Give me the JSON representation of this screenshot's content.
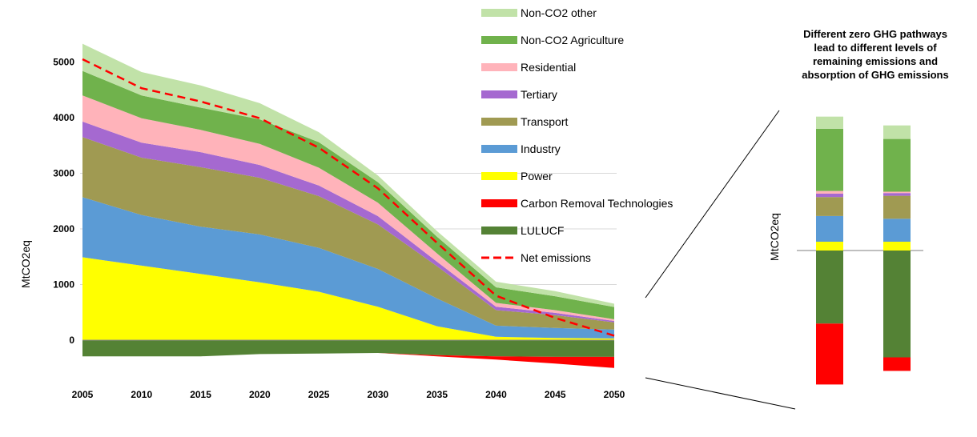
{
  "chart_data": [
    {
      "type": "area",
      "title": "",
      "xlabel": "",
      "ylabel": "MtCO2eq",
      "x": [
        2005,
        2010,
        2015,
        2020,
        2025,
        2030,
        2035,
        2040,
        2045,
        2050
      ],
      "xticks": [
        "2005",
        "2010",
        "2015",
        "2020",
        "2025",
        "2030",
        "2035",
        "2040",
        "2045",
        "2050"
      ],
      "yticks": [
        "0",
        "1000",
        "2000",
        "3000",
        "4000",
        "5000"
      ],
      "ylim": [
        -600,
        5600
      ],
      "grid": true,
      "legend_position": "top-right",
      "series": [
        {
          "name": "Power",
          "color": "#ffff00",
          "values": [
            1490,
            1340,
            1190,
            1040,
            870,
            600,
            250,
            60,
            40,
            30
          ]
        },
        {
          "name": "Industry",
          "color": "#5b9bd5",
          "values": [
            1080,
            910,
            850,
            860,
            790,
            680,
            500,
            200,
            180,
            160
          ]
        },
        {
          "name": "Transport",
          "color": "#a09a52",
          "values": [
            1080,
            1030,
            1070,
            1020,
            930,
            800,
            580,
            280,
            230,
            130
          ]
        },
        {
          "name": "Tertiary",
          "color": "#a569d0",
          "values": [
            280,
            270,
            270,
            230,
            190,
            150,
            80,
            60,
            40,
            25
          ]
        },
        {
          "name": "Residential",
          "color": "#ffb3ba",
          "values": [
            470,
            440,
            400,
            380,
            320,
            240,
            150,
            70,
            50,
            30
          ]
        },
        {
          "name": "Non-CO2 Agriculture",
          "color": "#70b24c",
          "values": [
            440,
            410,
            400,
            440,
            460,
            370,
            300,
            280,
            250,
            220
          ]
        },
        {
          "name": "Non-CO2 other",
          "color": "#c1e2a8",
          "values": [
            490,
            420,
            400,
            290,
            180,
            120,
            100,
            100,
            90,
            60
          ]
        },
        {
          "name": "LULUCF",
          "color": "#548235",
          "values": [
            -290,
            -290,
            -290,
            -250,
            -240,
            -230,
            -270,
            -290,
            -300,
            -300
          ]
        },
        {
          "name": "Carbon Removal Technologies",
          "color": "#ff0000",
          "values": [
            0,
            0,
            0,
            0,
            0,
            0,
            -20,
            -60,
            -120,
            -200
          ]
        },
        {
          "name": "Net emissions",
          "type": "line",
          "color": "#ff0000",
          "values": [
            5050,
            4530,
            4290,
            3990,
            3460,
            2730,
            1750,
            800,
            400,
            80
          ]
        }
      ]
    },
    {
      "type": "bar",
      "title": "Different zero GHG pathways lead to different levels of remaining emissions and absorption of GHG emissions",
      "ylabel": "MtCO2eq",
      "categories": [
        "",
        ""
      ],
      "series": [
        {
          "name": "Power",
          "values": [
            65,
            65
          ]
        },
        {
          "name": "Industry",
          "values": [
            190,
            170
          ]
        },
        {
          "name": "Transport",
          "values": [
            140,
            170
          ]
        },
        {
          "name": "Tertiary",
          "values": [
            25,
            20
          ]
        },
        {
          "name": "Residential",
          "values": [
            20,
            10
          ]
        },
        {
          "name": "Non-CO2 Agriculture",
          "values": [
            460,
            390
          ]
        },
        {
          "name": "Non-CO2 other",
          "values": [
            90,
            100
          ]
        },
        {
          "name": "LULUCF",
          "values": [
            -540,
            -790
          ]
        },
        {
          "name": "Carbon Removal Technologies",
          "values": [
            -450,
            -100
          ]
        }
      ]
    }
  ],
  "legend_order": [
    "Non-CO2 other",
    "Non-CO2 Agriculture",
    "Residential",
    "Tertiary",
    "Transport",
    "Industry",
    "Power",
    "Carbon Removal Technologies",
    "LULUCF",
    "Net emissions"
  ],
  "callout": {
    "lines": [
      "Different zero GHG pathways",
      "lead to different levels of",
      "remaining emissions and",
      "absorption of GHG emissions"
    ]
  },
  "colors": {
    "Non-CO2 other": "#c1e2a8",
    "Non-CO2 Agriculture": "#70b24c",
    "Residential": "#ffb3ba",
    "Tertiary": "#a569d0",
    "Transport": "#a09a52",
    "Industry": "#5b9bd5",
    "Power": "#ffff00",
    "Carbon Removal Technologies": "#ff0000",
    "LULUCF": "#548235",
    "Net emissions": "#ff0000"
  }
}
